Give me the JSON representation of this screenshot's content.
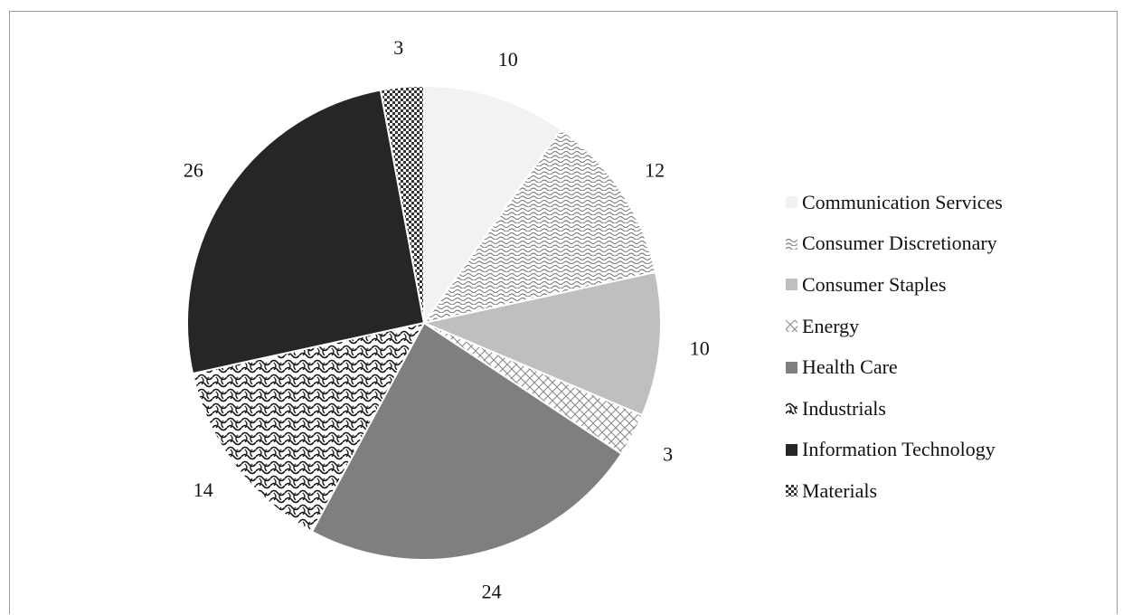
{
  "chart_data": {
    "type": "pie",
    "title": "",
    "categories": [
      "Communication Services",
      "Consumer Discretionary",
      "Consumer Staples",
      "Energy",
      "Health Care",
      "Industrials",
      "Information Technology",
      "Materials"
    ],
    "values": [
      10,
      12,
      10,
      3,
      24,
      14,
      26,
      3
    ],
    "data_labels": [
      "10",
      "12",
      "10",
      "3",
      "24",
      "14",
      "26",
      "3"
    ],
    "legend": {
      "placement": "right",
      "entries": [
        "Communication Services",
        "Consumer Discretionary",
        "Consumer Staples",
        "Energy",
        "Health Care",
        "Industrials",
        "Information Technology",
        "Materials"
      ]
    },
    "fills": [
      {
        "pattern": "solid",
        "color": "#f2f2f2"
      },
      {
        "pattern": "wave-fine",
        "color": "#7a7a7a"
      },
      {
        "pattern": "solid",
        "color": "#bfbfbf"
      },
      {
        "pattern": "diagonal-cross",
        "color": "#8a8a8a"
      },
      {
        "pattern": "solid",
        "color": "#7f7f7f"
      },
      {
        "pattern": "wave-bold",
        "color": "#111111"
      },
      {
        "pattern": "solid",
        "color": "#262626"
      },
      {
        "pattern": "checker",
        "color": "#333333"
      }
    ]
  }
}
